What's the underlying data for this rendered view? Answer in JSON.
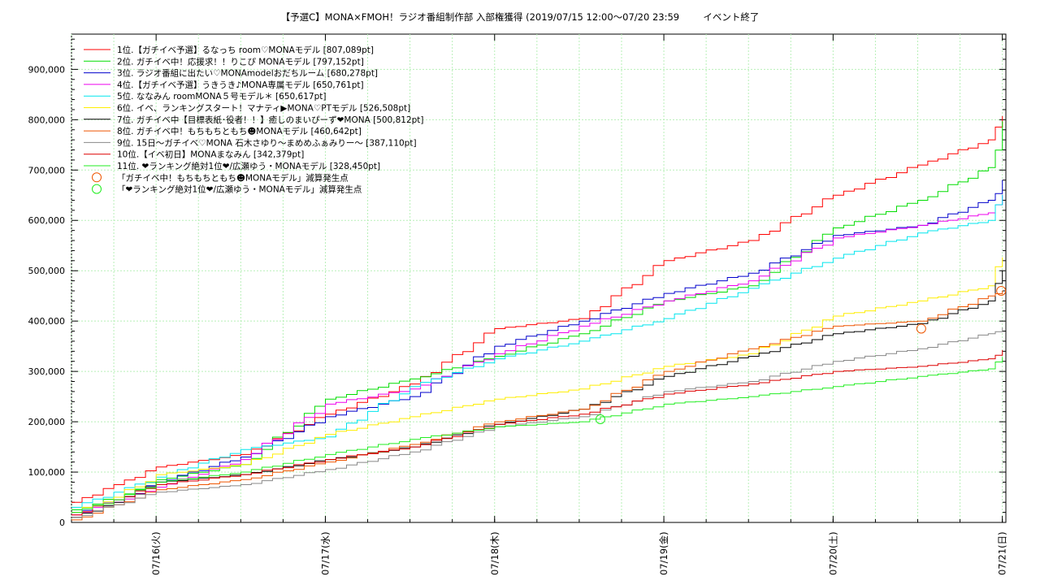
{
  "title": "【予選C】MONA×FMOH！ラジオ番組制作部 入部権獲得 (2019/07/15 12:00〜07/20 23:59        イベント終了",
  "chart_data": {
    "type": "line",
    "y_ticks": [
      0,
      100000,
      200000,
      300000,
      400000,
      500000,
      600000,
      700000,
      800000,
      900000
    ],
    "y_tick_labels": [
      "0",
      "100,000",
      "200,000",
      "300,000",
      "400,000",
      "500,000",
      "600,000",
      "700,000",
      "800,000",
      "900,000"
    ],
    "ylim": [
      0,
      970000
    ],
    "xlim": [
      "2019-07-15 12:00",
      "2019-07-21 00:30"
    ],
    "x_ticks": [
      "07/16(火)",
      "07/17(水)",
      "07/18(木)",
      "07/19(金)",
      "07/20(土)",
      "07/21(日)"
    ],
    "x_tick_dates": [
      "2019-07-16 00:00",
      "2019-07-17 00:00",
      "2019-07-18 00:00",
      "2019-07-19 00:00",
      "2019-07-20 00:00",
      "2019-07-21 00:00"
    ],
    "grid": true,
    "legend_position": "top-left",
    "series": [
      {
        "name": "1位.【ガチイベ予選】るなっち room♡MONAモデル [807,089pt]",
        "color": "#ff0000",
        "points": [
          [
            "07/15 12:00",
            40000
          ],
          [
            "07/15 18:00",
            75000
          ],
          [
            "07/16 00:00",
            110000
          ],
          [
            "07/16 12:00",
            135000
          ],
          [
            "07/17 00:00",
            215000
          ],
          [
            "07/17 12:00",
            275000
          ],
          [
            "07/18 00:00",
            385000
          ],
          [
            "07/18 12:00",
            405000
          ],
          [
            "07/19 00:00",
            520000
          ],
          [
            "07/19 12:00",
            560000
          ],
          [
            "07/20 00:00",
            650000
          ],
          [
            "07/20 12:00",
            710000
          ],
          [
            "07/20 22:00",
            760000
          ],
          [
            "07/21 00:00",
            807089
          ]
        ]
      },
      {
        "name": "2位. ガチイベ中！応援求！！りこぴ MONAモデル [797,152pt]",
        "color": "#00dd00",
        "points": [
          [
            "07/15 12:00",
            25000
          ],
          [
            "07/15 18:00",
            50000
          ],
          [
            "07/16 00:00",
            85000
          ],
          [
            "07/16 12:00",
            115000
          ],
          [
            "07/17 00:00",
            245000
          ],
          [
            "07/17 12:00",
            285000
          ],
          [
            "07/18 00:00",
            330000
          ],
          [
            "07/18 12:00",
            375000
          ],
          [
            "07/19 00:00",
            440000
          ],
          [
            "07/19 12:00",
            470000
          ],
          [
            "07/20 00:00",
            585000
          ],
          [
            "07/20 12:00",
            640000
          ],
          [
            "07/20 22:00",
            705000
          ],
          [
            "07/21 00:00",
            797152
          ]
        ]
      },
      {
        "name": "3位. ラジオ番組に出たい♡MONAmodelおだちルーム [680,278pt]",
        "color": "#0000cc",
        "points": [
          [
            "07/15 12:00",
            20000
          ],
          [
            "07/15 18:00",
            45000
          ],
          [
            "07/16 00:00",
            80000
          ],
          [
            "07/16 12:00",
            130000
          ],
          [
            "07/17 00:00",
            210000
          ],
          [
            "07/17 12:00",
            250000
          ],
          [
            "07/18 00:00",
            350000
          ],
          [
            "07/18 12:00",
            400000
          ],
          [
            "07/19 00:00",
            455000
          ],
          [
            "07/19 12:00",
            495000
          ],
          [
            "07/20 00:00",
            570000
          ],
          [
            "07/20 12:00",
            590000
          ],
          [
            "07/20 22:00",
            640000
          ],
          [
            "07/21 00:00",
            680278
          ]
        ]
      },
      {
        "name": "4位.【ガチイベ予選】うきうき♪MONA専属モデル [650,761pt]",
        "color": "#ee00ee",
        "points": [
          [
            "07/15 12:00",
            15000
          ],
          [
            "07/15 18:00",
            40000
          ],
          [
            "07/16 00:00",
            70000
          ],
          [
            "07/16 12:00",
            125000
          ],
          [
            "07/17 00:00",
            235000
          ],
          [
            "07/17 12:00",
            265000
          ],
          [
            "07/18 00:00",
            335000
          ],
          [
            "07/18 12:00",
            390000
          ],
          [
            "07/19 00:00",
            440000
          ],
          [
            "07/19 12:00",
            480000
          ],
          [
            "07/20 00:00",
            565000
          ],
          [
            "07/20 12:00",
            590000
          ],
          [
            "07/20 22:00",
            615000
          ],
          [
            "07/21 00:00",
            650761
          ]
        ]
      },
      {
        "name": "5位. ななみん roomMONA５号モデル＊ [650,617pt]",
        "color": "#00e5ee",
        "points": [
          [
            "07/15 12:00",
            30000
          ],
          [
            "07/15 18:00",
            60000
          ],
          [
            "07/16 00:00",
            90000
          ],
          [
            "07/16 12:00",
            145000
          ],
          [
            "07/17 00:00",
            170000
          ],
          [
            "07/17 12:00",
            270000
          ],
          [
            "07/18 00:00",
            325000
          ],
          [
            "07/18 12:00",
            360000
          ],
          [
            "07/19 00:00",
            405000
          ],
          [
            "07/19 12:00",
            465000
          ],
          [
            "07/20 00:00",
            525000
          ],
          [
            "07/20 12:00",
            575000
          ],
          [
            "07/20 22:00",
            600000
          ],
          [
            "07/21 00:00",
            650617
          ]
        ]
      },
      {
        "name": "6位. イベ、ランキングスタート！マナティ▶MONA♡PTモデル [526,508pt]",
        "color": "#ffee00",
        "points": [
          [
            "07/15 12:00",
            20000
          ],
          [
            "07/15 18:00",
            50000
          ],
          [
            "07/16 00:00",
            95000
          ],
          [
            "07/16 12:00",
            115000
          ],
          [
            "07/17 00:00",
            175000
          ],
          [
            "07/17 12:00",
            210000
          ],
          [
            "07/18 00:00",
            245000
          ],
          [
            "07/18 12:00",
            265000
          ],
          [
            "07/19 00:00",
            310000
          ],
          [
            "07/19 12:00",
            335000
          ],
          [
            "07/20 00:00",
            410000
          ],
          [
            "07/20 12:00",
            440000
          ],
          [
            "07/20 22:00",
            470000
          ],
          [
            "07/21 00:00",
            526508
          ]
        ]
      },
      {
        "name": "7位. ガチイベ中【目標表紙･役者！！】癒しのまいぴーず❤MONA [500,812pt]",
        "color": "#000000",
        "points": [
          [
            "07/15 12:00",
            10000
          ],
          [
            "07/15 18:00",
            40000
          ],
          [
            "07/16 00:00",
            80000
          ],
          [
            "07/16 12:00",
            95000
          ],
          [
            "07/17 00:00",
            125000
          ],
          [
            "07/17 12:00",
            150000
          ],
          [
            "07/18 00:00",
            195000
          ],
          [
            "07/18 12:00",
            225000
          ],
          [
            "07/19 00:00",
            290000
          ],
          [
            "07/19 12:00",
            330000
          ],
          [
            "07/20 00:00",
            375000
          ],
          [
            "07/20 12:00",
            395000
          ],
          [
            "07/20 22:00",
            440000
          ],
          [
            "07/21 00:00",
            500812
          ]
        ]
      },
      {
        "name": "8位. ガチイベ中！もちもちともち☻MONAモデル [460,642pt]",
        "color": "#ee5500",
        "points": [
          [
            "07/15 12:00",
            5000
          ],
          [
            "07/15 18:00",
            35000
          ],
          [
            "07/16 00:00",
            65000
          ],
          [
            "07/16 12:00",
            85000
          ],
          [
            "07/17 00:00",
            120000
          ],
          [
            "07/17 12:00",
            155000
          ],
          [
            "07/18 00:00",
            200000
          ],
          [
            "07/18 12:00",
            225000
          ],
          [
            "07/19 00:00",
            300000
          ],
          [
            "07/19 12:00",
            345000
          ],
          [
            "07/20 00:00",
            390000
          ],
          [
            "07/20 12:00",
            400000
          ],
          [
            "07/20 22:00",
            450000
          ],
          [
            "07/21 00:00",
            460642
          ]
        ]
      },
      {
        "name": "9位. 15日〜ガチイベ♡MONA 石木さゆり〜まめめふぁみりー〜 [387,110pt]",
        "color": "#888888",
        "points": [
          [
            "07/15 12:00",
            10000
          ],
          [
            "07/15 18:00",
            35000
          ],
          [
            "07/16 00:00",
            60000
          ],
          [
            "07/16 12:00",
            75000
          ],
          [
            "07/17 00:00",
            105000
          ],
          [
            "07/17 12:00",
            140000
          ],
          [
            "07/18 00:00",
            190000
          ],
          [
            "07/18 12:00",
            210000
          ],
          [
            "07/19 00:00",
            260000
          ],
          [
            "07/19 12:00",
            280000
          ],
          [
            "07/20 00:00",
            320000
          ],
          [
            "07/20 12:00",
            345000
          ],
          [
            "07/20 22:00",
            375000
          ],
          [
            "07/21 00:00",
            387110
          ]
        ]
      },
      {
        "name": "10位.【イベ初日】MONAまなみん [342,379pt]",
        "color": "#dd0000",
        "points": [
          [
            "07/15 12:00",
            15000
          ],
          [
            "07/15 18:00",
            45000
          ],
          [
            "07/16 00:00",
            75000
          ],
          [
            "07/16 12:00",
            95000
          ],
          [
            "07/17 00:00",
            125000
          ],
          [
            "07/17 12:00",
            150000
          ],
          [
            "07/18 00:00",
            195000
          ],
          [
            "07/18 12:00",
            215000
          ],
          [
            "07/19 00:00",
            255000
          ],
          [
            "07/19 12:00",
            275000
          ],
          [
            "07/20 00:00",
            300000
          ],
          [
            "07/20 12:00",
            310000
          ],
          [
            "07/20 22:00",
            325000
          ],
          [
            "07/21 00:00",
            342379
          ]
        ]
      },
      {
        "name": "11位. ❤ランキング絶対1位❤/広瀬ゆう・MONAモデル [328,450pt]",
        "color": "#22ee22",
        "points": [
          [
            "07/15 12:00",
            20000
          ],
          [
            "07/15 18:00",
            45000
          ],
          [
            "07/16 00:00",
            80000
          ],
          [
            "07/16 12:00",
            100000
          ],
          [
            "07/17 00:00",
            135000
          ],
          [
            "07/17 12:00",
            165000
          ],
          [
            "07/18 00:00",
            190000
          ],
          [
            "07/18 12:00",
            200000
          ],
          [
            "07/19 00:00",
            235000
          ],
          [
            "07/19 12:00",
            250000
          ],
          [
            "07/20 00:00",
            270000
          ],
          [
            "07/20 12:00",
            290000
          ],
          [
            "07/20 22:00",
            305000
          ],
          [
            "07/21 00:00",
            328450
          ]
        ]
      }
    ],
    "markers": [
      {
        "label": "「ガチイベ中！もちもちともち☻MONAモデル」減算発生点",
        "color": "#ee5500",
        "points": [
          [
            "07/20 12:30",
            385000
          ],
          [
            "07/20 23:50",
            460000
          ]
        ]
      },
      {
        "label": "「❤ランキング絶対1位❤/広瀬ゆう・MONAモデル」減算発生点",
        "color": "#22ee22",
        "points": [
          [
            "07/18 15:00",
            205000
          ]
        ]
      }
    ]
  }
}
